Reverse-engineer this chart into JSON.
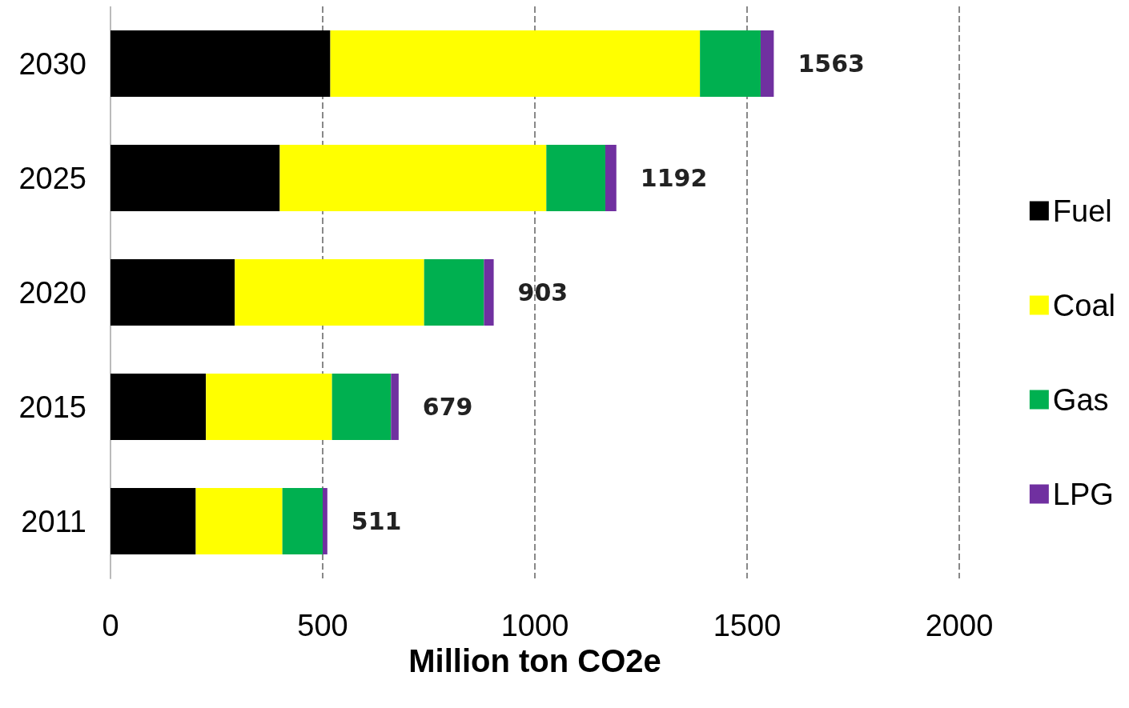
{
  "chart_data": {
    "type": "bar",
    "orientation": "horizontal",
    "stacked": true,
    "categories": [
      "2030",
      "2025",
      "2020",
      "2015",
      "2011"
    ],
    "series": [
      {
        "name": "Fuel",
        "color": "#000000",
        "values": [
          518,
          399,
          293,
          225,
          201
        ]
      },
      {
        "name": "Coal",
        "color": "#ffff00",
        "values": [
          871,
          628,
          446,
          297,
          204
        ]
      },
      {
        "name": "Gas",
        "color": "#00b050",
        "values": [
          143,
          139,
          141,
          139,
          95
        ]
      },
      {
        "name": "LPG",
        "color": "#7030a0",
        "values": [
          31,
          26,
          23,
          18,
          11
        ]
      }
    ],
    "totals": [
      "1563",
      "1192",
      "903",
      "679",
      "511"
    ],
    "xlabel": "Million ton CO2e",
    "xlim": [
      0,
      2000
    ],
    "xticks": [
      0,
      500,
      1000,
      1500,
      2000
    ],
    "grid": "x",
    "legend": "right",
    "marker": "square"
  }
}
